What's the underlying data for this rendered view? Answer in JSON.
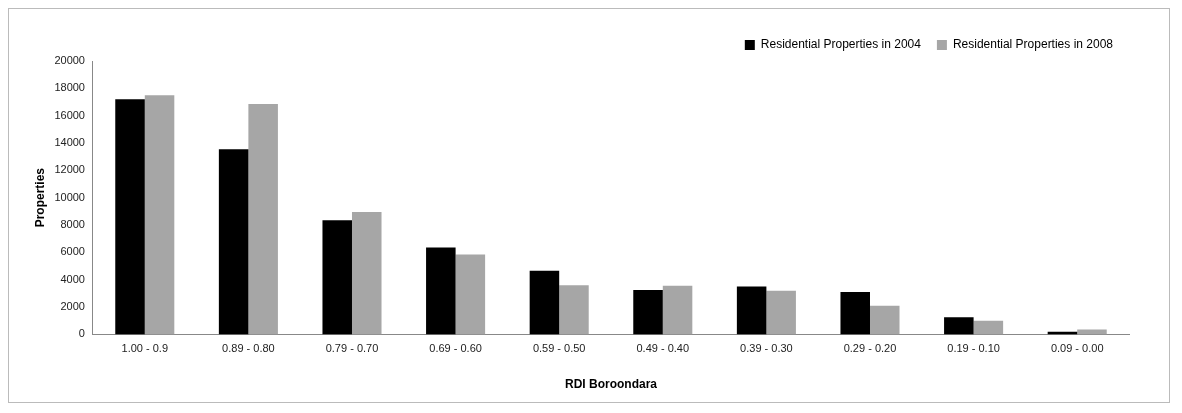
{
  "chart_data": {
    "type": "bar",
    "categories": [
      "1.00 - 0.9",
      "0.89 - 0.80",
      "0.79 - 0.70",
      "0.69 - 0.60",
      "0.59 - 0.50",
      "0.49 - 0.40",
      "0.39 - 0.30",
      "0.29 - 0.20",
      "0.19 - 0.10",
      "0.09 - 0.00"
    ],
    "series": [
      {
        "name": "Residential Properties in 2004",
        "color": "#000000",
        "values": [
          17200,
          13550,
          8350,
          6350,
          4650,
          3250,
          3500,
          3100,
          1250,
          200
        ]
      },
      {
        "name": "Residential Properties in 2008",
        "color": "#a6a6a6",
        "values": [
          17500,
          16850,
          8950,
          5850,
          3600,
          3550,
          3200,
          2100,
          1000,
          350
        ]
      }
    ],
    "xlabel": "RDI Boroondara",
    "ylabel": "Properties",
    "ylim": [
      0,
      20000
    ],
    "yticks": [
      0,
      2000,
      4000,
      6000,
      8000,
      10000,
      12000,
      14000,
      16000,
      18000,
      20000
    ],
    "grid": false,
    "legend": "top right"
  }
}
